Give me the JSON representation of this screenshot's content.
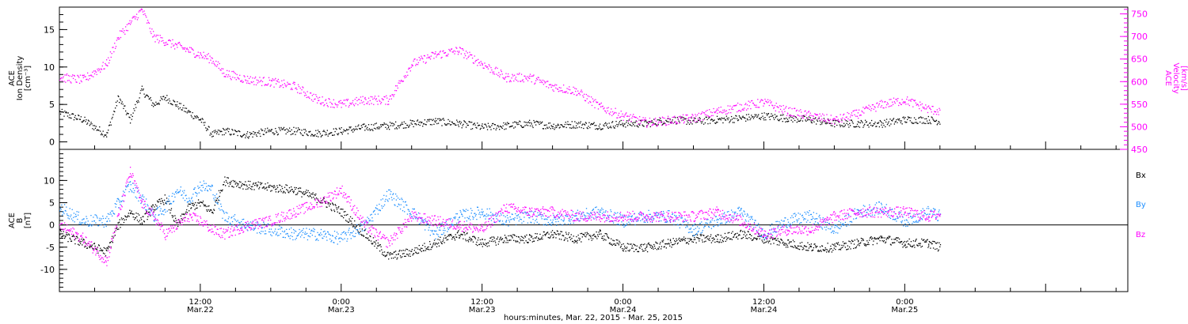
{
  "colors": {
    "black": "#000000",
    "magenta": "#ff00ff",
    "blue": "#1e8fff"
  },
  "x_axis": {
    "title": "hours:minutes, Mar. 22, 2015 - Mar. 25, 2015",
    "range_hours": [
      0,
      91
    ],
    "major_ticks": [
      {
        "hour": 12,
        "time": "12:00",
        "date": "Mar.22"
      },
      {
        "hour": 24,
        "time": "0:00",
        "date": "Mar.23"
      },
      {
        "hour": 36,
        "time": "12:00",
        "date": "Mar.23"
      },
      {
        "hour": 48,
        "time": "0:00",
        "date": "Mar.24"
      },
      {
        "hour": 60,
        "time": "12:00",
        "date": "Mar.24"
      },
      {
        "hour": 72,
        "time": "0:00",
        "date": "Mar.25"
      }
    ]
  },
  "chart_data": [
    {
      "type": "scatter",
      "panel": "top",
      "ylabel_left": [
        "ACE",
        "Ion Density",
        "[cm⁻³]"
      ],
      "ylabel_right": [
        "ACE",
        "Velocity",
        "[km/s]"
      ],
      "ylim_left": [
        -1,
        18
      ],
      "ylim_right": [
        450,
        765
      ],
      "yticks_left": [
        0,
        5,
        10,
        15
      ],
      "yticks_right": [
        450,
        500,
        550,
        600,
        650,
        700,
        750
      ],
      "series": [
        {
          "axis": "left",
          "color": "#000000",
          "x": [
            0,
            2,
            4,
            5,
            6,
            7,
            8,
            9,
            10,
            11,
            12,
            13,
            14,
            16,
            18,
            20,
            22,
            24,
            26,
            28,
            30,
            32,
            34,
            36,
            38,
            40,
            42,
            44,
            46,
            48,
            50,
            52,
            54,
            56,
            58,
            60,
            62,
            64,
            66,
            68,
            70,
            72,
            74,
            75
          ],
          "y": [
            4,
            3,
            1,
            6,
            3,
            7,
            5,
            6,
            5,
            4,
            3,
            1,
            1.5,
            1,
            1.5,
            1.5,
            1.2,
            1.5,
            2,
            2.2,
            2.5,
            2.8,
            2.5,
            2,
            2.2,
            2.5,
            2.2,
            2.4,
            2.2,
            2.5,
            2.5,
            3,
            2.8,
            3,
            3.2,
            3.5,
            3.2,
            3,
            2.5,
            2.5,
            2.5,
            3,
            3,
            2.8
          ]
        },
        {
          "axis": "right",
          "color": "#ff00ff",
          "x": [
            0,
            2,
            4,
            5,
            6,
            7,
            8,
            9,
            10,
            11,
            12,
            13,
            14,
            16,
            18,
            20,
            22,
            24,
            26,
            28,
            30,
            32,
            34,
            36,
            38,
            40,
            42,
            44,
            46,
            48,
            50,
            52,
            54,
            56,
            58,
            60,
            62,
            64,
            66,
            68,
            70,
            72,
            74,
            75
          ],
          "y": [
            610,
            605,
            640,
            700,
            730,
            760,
            700,
            690,
            680,
            670,
            660,
            650,
            620,
            605,
            600,
            590,
            560,
            550,
            560,
            560,
            640,
            660,
            670,
            640,
            610,
            610,
            590,
            580,
            545,
            525,
            510,
            515,
            520,
            535,
            545,
            555,
            535,
            525,
            515,
            530,
            550,
            560,
            540,
            535
          ]
        }
      ]
    },
    {
      "type": "scatter",
      "panel": "bottom",
      "ylabel_left": [
        "ACE",
        "B",
        "[nT]"
      ],
      "ylim": [
        -15,
        17
      ],
      "yticks": [
        -10,
        -5,
        0,
        5,
        10
      ],
      "series": [
        {
          "name": "Bx",
          "color": "#000000",
          "x": [
            0,
            2,
            4,
            5,
            6,
            7,
            8,
            9,
            10,
            11,
            12,
            13,
            14,
            16,
            18,
            20,
            22,
            24,
            26,
            28,
            30,
            32,
            34,
            36,
            38,
            40,
            42,
            44,
            46,
            48,
            50,
            52,
            54,
            56,
            58,
            60,
            62,
            64,
            66,
            68,
            70,
            72,
            74,
            75
          ],
          "y": [
            -2,
            -4,
            -6,
            0,
            3,
            1,
            4,
            6,
            0,
            4,
            5,
            3,
            10,
            9,
            8.5,
            8,
            6,
            3,
            -2,
            -7,
            -6,
            -4,
            -2,
            -4,
            -3,
            -3,
            -2,
            -3,
            -2,
            -5,
            -5,
            -4,
            -3,
            -3,
            -2,
            -3,
            -4,
            -5,
            -5,
            -4,
            -3,
            -4,
            -4,
            -5
          ]
        },
        {
          "name": "By",
          "color": "#1e8fff",
          "x": [
            0,
            2,
            4,
            5,
            6,
            7,
            8,
            9,
            10,
            11,
            12,
            13,
            14,
            16,
            18,
            20,
            22,
            24,
            26,
            28,
            30,
            32,
            34,
            36,
            38,
            40,
            42,
            44,
            46,
            48,
            50,
            52,
            54,
            56,
            58,
            60,
            62,
            64,
            66,
            68,
            70,
            72,
            74,
            75
          ],
          "y": [
            4,
            1,
            1,
            5,
            9,
            6,
            2,
            4,
            8,
            6,
            9,
            8,
            2,
            0,
            -1,
            -2,
            -2,
            -3,
            0,
            7,
            3,
            -2,
            2,
            3,
            1,
            2,
            1,
            2,
            3,
            1,
            2,
            2,
            -1,
            1,
            3,
            -2,
            1,
            2,
            -1,
            3,
            4,
            1,
            3,
            2
          ]
        },
        {
          "name": "Bz",
          "color": "#ff00ff",
          "x": [
            0,
            2,
            4,
            5,
            6,
            7,
            8,
            9,
            10,
            11,
            12,
            13,
            14,
            16,
            18,
            20,
            22,
            24,
            26,
            28,
            30,
            32,
            34,
            36,
            38,
            40,
            42,
            44,
            46,
            48,
            50,
            52,
            54,
            56,
            58,
            60,
            62,
            64,
            66,
            68,
            70,
            72,
            74,
            75
          ],
          "y": [
            0,
            -3,
            -8,
            2,
            12,
            5,
            2,
            -2,
            0,
            2,
            1,
            -1,
            -2,
            0,
            1,
            3,
            5,
            8,
            0,
            -4,
            2,
            1,
            0,
            -1,
            4,
            3,
            3,
            2,
            2,
            2,
            2,
            2,
            2,
            3,
            1,
            -2,
            -1,
            -1,
            2,
            3,
            3,
            3,
            2,
            2.5
          ]
        }
      ],
      "legend_placement": "right"
    }
  ]
}
